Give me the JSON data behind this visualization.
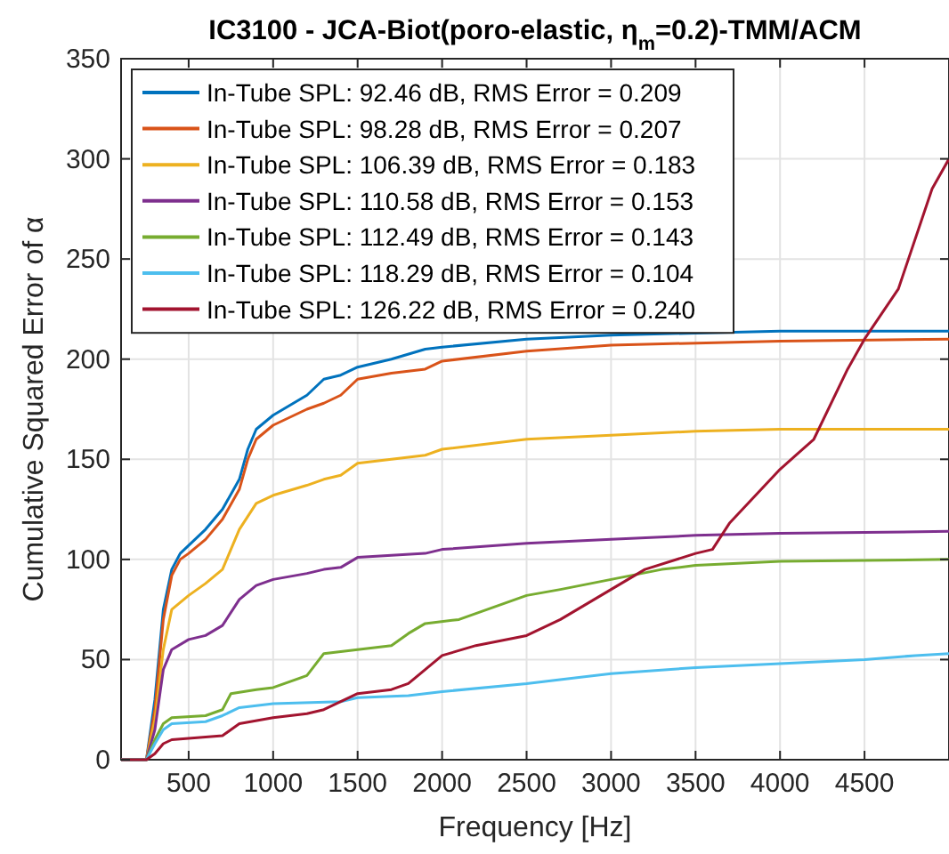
{
  "chart_data": {
    "type": "line",
    "title": "IC3100 - JCA-Biot(poro-elastic, η$_{m}$=0.2)-TMM/ACM",
    "xlabel": "Frequency [Hz]",
    "ylabel": "Cumulative Squared Error of α",
    "xlim": [
      100,
      5000
    ],
    "xticks": [
      500,
      1000,
      1500,
      2000,
      2500,
      3000,
      3500,
      4000,
      4500
    ],
    "ylim": [
      0,
      350
    ],
    "yticks": [
      0,
      50,
      100,
      150,
      200,
      250,
      300,
      350
    ],
    "grid": true,
    "legend": "top left",
    "series": [
      {
        "name": "In-Tube SPL: 92.46 dB, RMS Error = 0.209",
        "color": "#0072bd",
        "x": [
          100,
          250,
          300,
          350,
          400,
          450,
          500,
          600,
          700,
          800,
          850,
          900,
          1000,
          1100,
          1200,
          1300,
          1400,
          1500,
          1700,
          1900,
          2000,
          2500,
          3000,
          3500,
          4000,
          5000
        ],
        "values": [
          0,
          0,
          30,
          75,
          95,
          103,
          107,
          115,
          125,
          140,
          155,
          165,
          172,
          177,
          182,
          190,
          192,
          196,
          200,
          205,
          206,
          210,
          212,
          213,
          214,
          214
        ]
      },
      {
        "name": "In-Tube SPL: 98.28 dB, RMS Error = 0.207",
        "color": "#d95319",
        "x": [
          100,
          250,
          300,
          350,
          400,
          450,
          500,
          600,
          700,
          800,
          850,
          900,
          1000,
          1200,
          1300,
          1400,
          1500,
          1700,
          1900,
          2000,
          2500,
          3000,
          4000,
          5000
        ],
        "values": [
          0,
          0,
          25,
          70,
          92,
          100,
          103,
          110,
          120,
          135,
          150,
          160,
          167,
          175,
          178,
          182,
          190,
          193,
          195,
          199,
          204,
          207,
          209,
          210
        ]
      },
      {
        "name": "In-Tube SPL: 106.39 dB, RMS Error = 0.183",
        "color": "#edb120",
        "x": [
          100,
          250,
          300,
          350,
          400,
          500,
          600,
          700,
          800,
          900,
          1000,
          1200,
          1300,
          1400,
          1500,
          1700,
          1900,
          2000,
          2500,
          3000,
          3500,
          4000,
          5000
        ],
        "values": [
          0,
          0,
          20,
          55,
          75,
          82,
          88,
          95,
          115,
          128,
          132,
          137,
          140,
          142,
          148,
          150,
          152,
          155,
          160,
          162,
          164,
          165,
          165
        ]
      },
      {
        "name": "In-Tube SPL: 110.58 dB, RMS Error = 0.153",
        "color": "#7e2f8e",
        "x": [
          100,
          250,
          300,
          350,
          400,
          500,
          600,
          700,
          800,
          900,
          1000,
          1200,
          1300,
          1400,
          1500,
          1700,
          1900,
          2000,
          2500,
          3000,
          3500,
          4000,
          5000
        ],
        "values": [
          0,
          0,
          15,
          45,
          55,
          60,
          62,
          67,
          80,
          87,
          90,
          93,
          95,
          96,
          101,
          102,
          103,
          105,
          108,
          110,
          112,
          113,
          114
        ]
      },
      {
        "name": "In-Tube SPL: 112.49 dB, RMS Error = 0.143",
        "color": "#77ac30",
        "x": [
          100,
          250,
          300,
          350,
          400,
          600,
          700,
          750,
          900,
          1000,
          1200,
          1300,
          1500,
          1700,
          1800,
          1900,
          2100,
          2200,
          2500,
          2700,
          3000,
          3300,
          3500,
          4000,
          5000
        ],
        "values": [
          0,
          0,
          10,
          18,
          21,
          22,
          25,
          33,
          35,
          36,
          42,
          53,
          55,
          57,
          63,
          68,
          70,
          73,
          82,
          85,
          90,
          95,
          97,
          99,
          100
        ]
      },
      {
        "name": "In-Tube SPL: 118.29 dB, RMS Error = 0.104",
        "color": "#4dbeee",
        "x": [
          100,
          250,
          300,
          350,
          400,
          600,
          700,
          800,
          1000,
          1400,
          1500,
          1800,
          2000,
          2500,
          3000,
          3500,
          4000,
          4500,
          4800,
          5000
        ],
        "values": [
          0,
          0,
          8,
          15,
          18,
          19,
          22,
          26,
          28,
          29,
          31,
          32,
          34,
          38,
          43,
          46,
          48,
          50,
          52,
          53
        ]
      },
      {
        "name": "In-Tube SPL: 126.22 dB, RMS Error = 0.240",
        "color": "#a2142f",
        "x": [
          100,
          250,
          300,
          350,
          400,
          700,
          800,
          1000,
          1200,
          1300,
          1500,
          1700,
          1800,
          2000,
          2200,
          2500,
          2700,
          3000,
          3200,
          3500,
          3600,
          3700,
          4000,
          4200,
          4400,
          4500,
          4700,
          4900,
          5000
        ],
        "values": [
          0,
          0,
          3,
          8,
          10,
          12,
          18,
          21,
          23,
          25,
          33,
          35,
          38,
          52,
          57,
          62,
          70,
          85,
          95,
          103,
          105,
          118,
          145,
          160,
          195,
          210,
          235,
          285,
          300
        ]
      }
    ]
  }
}
